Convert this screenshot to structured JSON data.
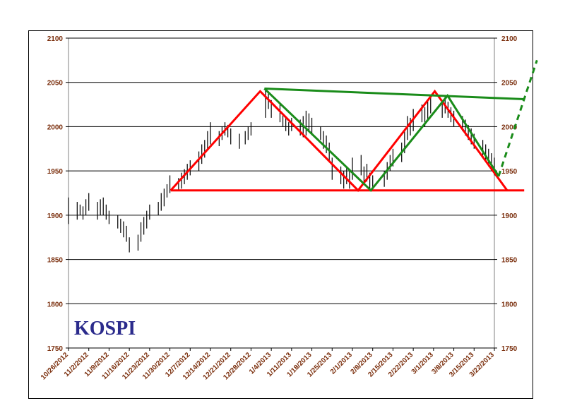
{
  "chart_data": {
    "type": "line",
    "title": "KOSPI",
    "ylim": [
      1750,
      2100
    ],
    "y_ticks": [
      1750,
      1800,
      1850,
      1900,
      1950,
      2000,
      2050,
      2100
    ],
    "x_tick_labels": [
      "10/26/2012",
      "11/2/2012",
      "11/9/2012",
      "11/16/2012",
      "11/23/2012",
      "11/30/2012",
      "12/7/2012",
      "12/14/2012",
      "12/21/2012",
      "12/28/2012",
      "1/4/2013",
      "1/11/2013",
      "1/18/2013",
      "1/25/2013",
      "2/1/2013",
      "2/8/2013",
      "2/15/2013",
      "2/22/2013",
      "3/1/2013",
      "3/8/2013",
      "3/15/2013",
      "3/22/2013"
    ],
    "grid": true,
    "colors": {
      "axis_text": "#7a2e0c",
      "title": "#2b2b8c",
      "red": "#ff0000",
      "green": "#1a8c1a",
      "bars": "#000000"
    },
    "price_bars": [
      {
        "date": "10/26/2012",
        "low": 1890,
        "high": 1920
      },
      {
        "date": "10/29/2012",
        "low": 1895,
        "high": 1915
      },
      {
        "date": "10/30/2012",
        "low": 1900,
        "high": 1912
      },
      {
        "date": "10/31/2012",
        "low": 1895,
        "high": 1910
      },
      {
        "date": "11/1/2012",
        "low": 1900,
        "high": 1918
      },
      {
        "date": "11/2/2012",
        "low": 1905,
        "high": 1925
      },
      {
        "date": "11/5/2012",
        "low": 1895,
        "high": 1915
      },
      {
        "date": "11/6/2012",
        "low": 1900,
        "high": 1918
      },
      {
        "date": "11/7/2012",
        "low": 1900,
        "high": 1920
      },
      {
        "date": "11/8/2012",
        "low": 1895,
        "high": 1912
      },
      {
        "date": "11/9/2012",
        "low": 1890,
        "high": 1905
      },
      {
        "date": "11/12/2012",
        "low": 1885,
        "high": 1900
      },
      {
        "date": "11/13/2012",
        "low": 1880,
        "high": 1896
      },
      {
        "date": "11/14/2012",
        "low": 1875,
        "high": 1893
      },
      {
        "date": "11/15/2012",
        "low": 1870,
        "high": 1888
      },
      {
        "date": "11/16/2012",
        "low": 1858,
        "high": 1875
      },
      {
        "date": "11/19/2012",
        "low": 1860,
        "high": 1878
      },
      {
        "date": "11/20/2012",
        "low": 1870,
        "high": 1892
      },
      {
        "date": "11/21/2012",
        "low": 1878,
        "high": 1898
      },
      {
        "date": "11/22/2012",
        "low": 1885,
        "high": 1905
      },
      {
        "date": "11/23/2012",
        "low": 1895,
        "high": 1912
      },
      {
        "date": "11/26/2012",
        "low": 1900,
        "high": 1915
      },
      {
        "date": "11/27/2012",
        "low": 1905,
        "high": 1925
      },
      {
        "date": "11/28/2012",
        "low": 1910,
        "high": 1930
      },
      {
        "date": "11/29/2012",
        "low": 1920,
        "high": 1935
      },
      {
        "date": "11/30/2012",
        "low": 1925,
        "high": 1945
      },
      {
        "date": "12/3/2012",
        "low": 1928,
        "high": 1942
      },
      {
        "date": "12/4/2012",
        "low": 1930,
        "high": 1948
      },
      {
        "date": "12/5/2012",
        "low": 1935,
        "high": 1952
      },
      {
        "date": "12/6/2012",
        "low": 1940,
        "high": 1958
      },
      {
        "date": "12/7/2012",
        "low": 1945,
        "high": 1962
      },
      {
        "date": "12/10/2012",
        "low": 1950,
        "high": 1972
      },
      {
        "date": "12/11/2012",
        "low": 1958,
        "high": 1980
      },
      {
        "date": "12/12/2012",
        "low": 1965,
        "high": 1985
      },
      {
        "date": "12/13/2012",
        "low": 1975,
        "high": 1995
      },
      {
        "date": "12/14/2012",
        "low": 1980,
        "high": 2005
      },
      {
        "date": "12/17/2012",
        "low": 1978,
        "high": 1995
      },
      {
        "date": "12/18/2012",
        "low": 1985,
        "high": 2000
      },
      {
        "date": "12/19/2012",
        "low": 1990,
        "high": 2005
      },
      {
        "date": "12/20/2012",
        "low": 1988,
        "high": 2002
      },
      {
        "date": "12/21/2012",
        "low": 1980,
        "high": 1998
      },
      {
        "date": "12/24/2012",
        "low": 1975,
        "high": 1992
      },
      {
        "date": "12/26/2012",
        "low": 1980,
        "high": 1995
      },
      {
        "date": "12/27/2012",
        "low": 1985,
        "high": 2000
      },
      {
        "date": "12/28/2012",
        "low": 1990,
        "high": 2005
      },
      {
        "date": "1/2/2013",
        "low": 2010,
        "high": 2042
      },
      {
        "date": "1/3/2013",
        "low": 2020,
        "high": 2040
      },
      {
        "date": "1/4/2013",
        "low": 2010,
        "high": 2030
      },
      {
        "date": "1/7/2013",
        "low": 2005,
        "high": 2025
      },
      {
        "date": "1/8/2013",
        "low": 2000,
        "high": 2015
      },
      {
        "date": "1/9/2013",
        "low": 1995,
        "high": 2010
      },
      {
        "date": "1/10/2013",
        "low": 1990,
        "high": 2005
      },
      {
        "date": "1/11/2013",
        "low": 1995,
        "high": 2010
      },
      {
        "date": "1/14/2013",
        "low": 1990,
        "high": 2008
      },
      {
        "date": "1/15/2013",
        "low": 1988,
        "high": 2012
      },
      {
        "date": "1/16/2013",
        "low": 1990,
        "high": 2018
      },
      {
        "date": "1/17/2013",
        "low": 1995,
        "high": 2015
      },
      {
        "date": "1/18/2013",
        "low": 1992,
        "high": 2010
      },
      {
        "date": "1/21/2013",
        "low": 1985,
        "high": 2000
      },
      {
        "date": "1/22/2013",
        "low": 1975,
        "high": 1995
      },
      {
        "date": "1/23/2013",
        "low": 1970,
        "high": 1990
      },
      {
        "date": "1/24/2013",
        "low": 1960,
        "high": 1982
      },
      {
        "date": "1/25/2013",
        "low": 1940,
        "high": 1965
      },
      {
        "date": "1/28/2013",
        "low": 1935,
        "high": 1955
      },
      {
        "date": "1/29/2013",
        "low": 1930,
        "high": 1950
      },
      {
        "date": "1/30/2013",
        "low": 1935,
        "high": 1955
      },
      {
        "date": "1/31/2013",
        "low": 1930,
        "high": 1950
      },
      {
        "date": "2/1/2013",
        "low": 1940,
        "high": 1965
      },
      {
        "date": "2/4/2013",
        "low": 1945,
        "high": 1968
      },
      {
        "date": "2/5/2013",
        "low": 1935,
        "high": 1955
      },
      {
        "date": "2/6/2013",
        "low": 1938,
        "high": 1958
      },
      {
        "date": "2/7/2013",
        "low": 1930,
        "high": 1948
      },
      {
        "date": "2/8/2013",
        "low": 1928,
        "high": 1945
      },
      {
        "date": "2/12/2013",
        "low": 1932,
        "high": 1950
      },
      {
        "date": "2/13/2013",
        "low": 1940,
        "high": 1960
      },
      {
        "date": "2/14/2013",
        "low": 1950,
        "high": 1968
      },
      {
        "date": "2/15/2013",
        "low": 1955,
        "high": 1975
      },
      {
        "date": "2/18/2013",
        "low": 1960,
        "high": 1982
      },
      {
        "date": "2/19/2013",
        "low": 1970,
        "high": 1995
      },
      {
        "date": "2/20/2013",
        "low": 1985,
        "high": 2012
      },
      {
        "date": "2/21/2013",
        "low": 1990,
        "high": 2010
      },
      {
        "date": "2/22/2013",
        "low": 1995,
        "high": 2020
      },
      {
        "date": "2/25/2013",
        "low": 2005,
        "high": 2025
      },
      {
        "date": "2/26/2013",
        "low": 2000,
        "high": 2022
      },
      {
        "date": "2/27/2013",
        "low": 2008,
        "high": 2028
      },
      {
        "date": "2/28/2013",
        "low": 2015,
        "high": 2035
      },
      {
        "date": "3/4/2013",
        "low": 2010,
        "high": 2030
      },
      {
        "date": "3/5/2013",
        "low": 2015,
        "high": 2035
      },
      {
        "date": "3/6/2013",
        "low": 2010,
        "high": 2028
      },
      {
        "date": "3/7/2013",
        "low": 2005,
        "high": 2022
      },
      {
        "date": "3/8/2013",
        "low": 2000,
        "high": 2018
      },
      {
        "date": "3/11/2013",
        "low": 1995,
        "high": 2012
      },
      {
        "date": "3/12/2013",
        "low": 1990,
        "high": 2008
      },
      {
        "date": "3/13/2013",
        "low": 1985,
        "high": 2002
      },
      {
        "date": "3/14/2013",
        "low": 1980,
        "high": 1998
      },
      {
        "date": "3/15/2013",
        "low": 1975,
        "high": 1992
      },
      {
        "date": "3/18/2013",
        "low": 1968,
        "high": 1985
      },
      {
        "date": "3/19/2013",
        "low": 1960,
        "high": 1980
      },
      {
        "date": "3/20/2013",
        "low": 1955,
        "high": 1975
      },
      {
        "date": "3/21/2013",
        "low": 1950,
        "high": 1970
      },
      {
        "date": "3/22/2013",
        "low": 1945,
        "high": 1965
      }
    ],
    "trend_lines": [
      {
        "kind": "red-support",
        "color": "#ff0000",
        "points": [
          [
            0.24,
            1928
          ],
          [
            1.07,
            1928
          ]
        ]
      },
      {
        "kind": "red-pattern",
        "color": "#ff0000",
        "points": [
          [
            0.24,
            1928
          ],
          [
            0.45,
            2040
          ],
          [
            0.68,
            1928
          ],
          [
            0.86,
            2040
          ],
          [
            1.03,
            1928
          ]
        ]
      },
      {
        "kind": "green-resistance",
        "color": "#1a8c1a",
        "points": [
          [
            0.46,
            2043
          ],
          [
            1.07,
            2031
          ]
        ]
      },
      {
        "kind": "green-pattern",
        "color": "#1a8c1a",
        "points": [
          [
            0.46,
            2043
          ],
          [
            0.71,
            1928
          ],
          [
            0.89,
            2035
          ],
          [
            1.01,
            1944
          ]
        ]
      },
      {
        "kind": "green-projection-dashed",
        "color": "#1a8c1a",
        "points": [
          [
            1.01,
            1944
          ],
          [
            1.1,
            2075
          ]
        ]
      }
    ]
  }
}
